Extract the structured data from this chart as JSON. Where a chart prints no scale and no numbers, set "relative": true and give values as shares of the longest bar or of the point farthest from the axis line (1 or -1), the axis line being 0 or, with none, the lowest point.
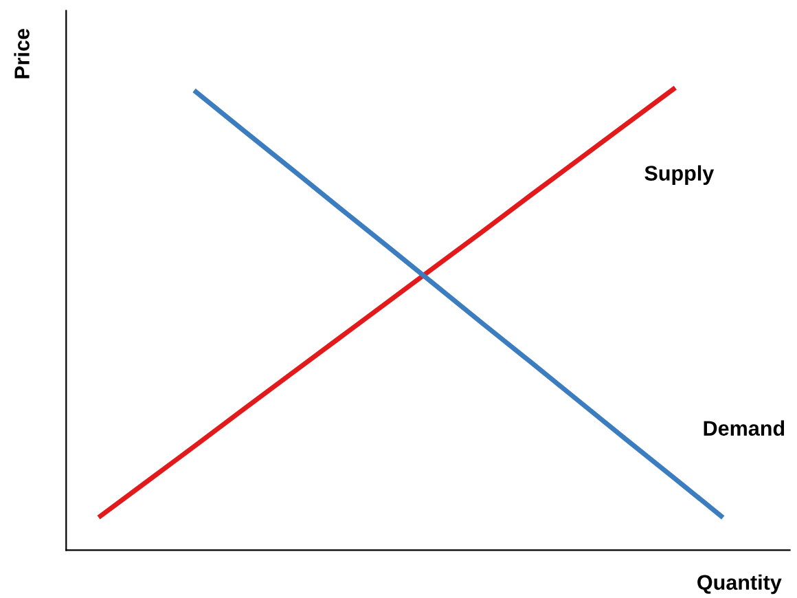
{
  "chart_data": {
    "type": "line",
    "relative": true,
    "xlabel": "Quantity",
    "ylabel": "Price",
    "legend": false,
    "marker": "none",
    "line_style": "solid",
    "categories": [
      null,
      null,
      null,
      null,
      null,
      null,
      null,
      null,
      null,
      null,
      null,
      null,
      null,
      null
    ],
    "series": [
      {
        "name": "Supply",
        "color": "#e31a1c",
        "values": [
          0.074,
          0.151,
          0.228,
          0.306,
          0.383,
          0.46,
          0.537,
          0.614,
          0.691,
          0.769,
          0.846,
          0.923,
          1.0,
          null
        ]
      },
      {
        "name": "Demand",
        "color": "#3b7dbf",
        "values": [
          null,
          null,
          0.994,
          0.91,
          0.827,
          0.743,
          0.66,
          0.576,
          0.492,
          0.409,
          0.325,
          0.241,
          0.158,
          0.074
        ]
      }
    ]
  }
}
